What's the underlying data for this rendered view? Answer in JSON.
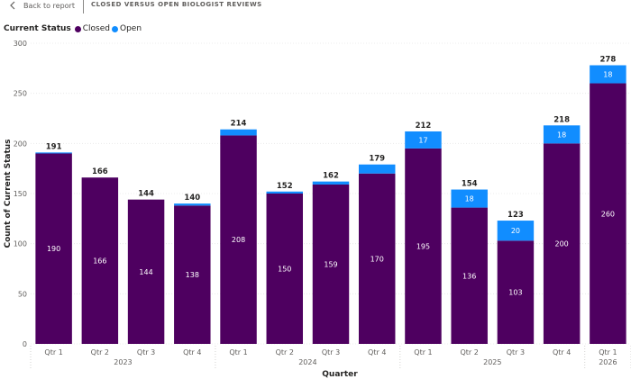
{
  "header": {
    "back_label": "Back to report",
    "page_title": "CLOSED VERSUS OPEN BIOLOGIST REVIEWS"
  },
  "legend": {
    "title": "Current Status",
    "items": [
      {
        "label": "Closed",
        "color": "#4e0060"
      },
      {
        "label": "Open",
        "color": "#118dff"
      }
    ]
  },
  "chart_data": {
    "type": "bar",
    "stacked": true,
    "xlabel": "Quarter",
    "ylabel": "Count of Current Status",
    "ylim": [
      0,
      300
    ],
    "yticks": [
      0,
      50,
      100,
      150,
      200,
      250,
      300
    ],
    "categories": [
      "Qtr 1",
      "Qtr 2",
      "Qtr 3",
      "Qtr 4",
      "Qtr 1",
      "Qtr 2",
      "Qtr 3",
      "Qtr 4",
      "Qtr 1",
      "Qtr 2",
      "Qtr 3",
      "Qtr 4",
      "Qtr 1"
    ],
    "year_groups": [
      {
        "label": "2023",
        "start": 0,
        "end": 3
      },
      {
        "label": "2024",
        "start": 4,
        "end": 7
      },
      {
        "label": "2025",
        "start": 8,
        "end": 11
      },
      {
        "label": "2026",
        "start": 12,
        "end": 12
      }
    ],
    "series": [
      {
        "name": "Closed",
        "color": "#4e0060",
        "values": [
          190,
          166,
          144,
          138,
          208,
          150,
          159,
          170,
          195,
          136,
          103,
          200,
          260
        ]
      },
      {
        "name": "Open",
        "color": "#118dff",
        "values": [
          1,
          0,
          0,
          2,
          6,
          2,
          3,
          9,
          17,
          18,
          20,
          18,
          18
        ]
      }
    ],
    "totals": [
      191,
      166,
      144,
      140,
      214,
      152,
      162,
      179,
      212,
      154,
      123,
      218,
      278
    ],
    "open_labels_shown": [
      false,
      false,
      false,
      false,
      false,
      false,
      false,
      false,
      true,
      true,
      true,
      true,
      true
    ]
  }
}
